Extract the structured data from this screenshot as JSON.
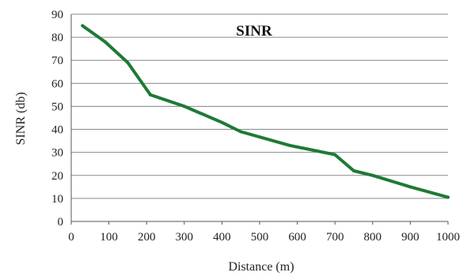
{
  "chart_data": {
    "type": "line",
    "title": "SINR",
    "xlabel": "Distance (m)",
    "ylabel": "SINR (db)",
    "xlim": [
      0,
      1000
    ],
    "ylim": [
      0,
      90
    ],
    "x_ticks": [
      "0",
      "100",
      "200",
      "300",
      "400",
      "500",
      "600",
      "700",
      "800",
      "900",
      "1000"
    ],
    "y_ticks": [
      "0",
      "10",
      "20",
      "30",
      "40",
      "50",
      "60",
      "70",
      "80",
      "90"
    ],
    "grid": true,
    "legend": "none",
    "line_color": "#1e7a34",
    "series": [
      {
        "x": [
          30,
          90,
          150,
          210,
          300,
          400,
          450,
          580,
          700,
          750,
          800,
          900,
          1000
        ],
        "values": [
          85,
          78,
          69,
          55,
          50,
          43,
          39,
          33,
          29,
          22,
          20,
          15,
          10.5
        ]
      }
    ]
  }
}
